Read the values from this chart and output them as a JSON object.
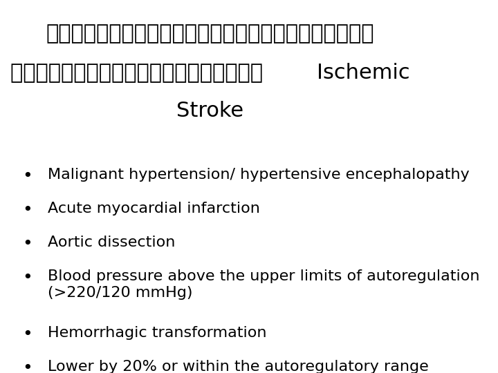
{
  "title_line1": "ภาวะทไมถือเปนขอหามในการใหย",
  "title_line2_thai": "ยาลดความดนโลหตในผปวย",
  "title_line2_english": "Ischemic",
  "title_line3": "Stroke",
  "bullet_items": [
    "Malignant hypertension/ hypertensive encephalopathy",
    "Acute myocardial infarction",
    "Aortic dissection",
    "Blood pressure above the upper limits of autoregulation\n(>220/120 mmHg)",
    "Hemorrhagic transformation",
    "Lower by 20% or within the autoregulatory range"
  ],
  "background_color": "#ffffff",
  "text_color": "#000000",
  "title_fontsize": 22,
  "bullet_fontsize": 16,
  "bullet_symbol": "•"
}
